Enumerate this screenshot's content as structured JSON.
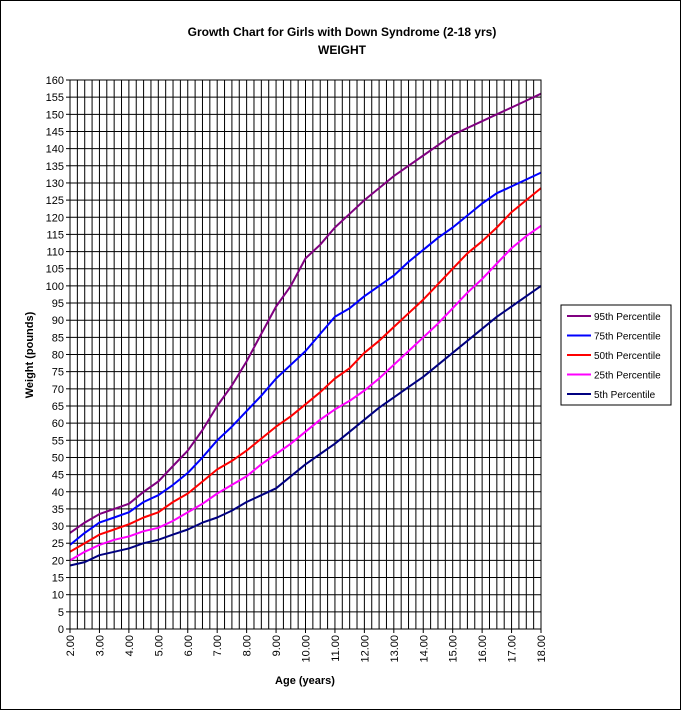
{
  "chart_data": {
    "type": "line",
    "title": "Growth Chart for Girls with Down Syndrome (2-18 yrs)",
    "subtitle": "WEIGHT",
    "xlabel": "Age (years)",
    "ylabel": "Weight (pounds)",
    "xlim": [
      2,
      18
    ],
    "ylim": [
      0,
      160
    ],
    "grid": true,
    "legend_position": "right",
    "x_ticks": [
      "2.00",
      "3.00",
      "4.00",
      "5.00",
      "6.00",
      "7.00",
      "8.00",
      "9.00",
      "10.00",
      "11.00",
      "12.00",
      "13.00",
      "14.00",
      "15.00",
      "16.00",
      "17.00",
      "18.00"
    ],
    "y_ticks": [
      "0",
      "5",
      "10",
      "15",
      "20",
      "25",
      "30",
      "35",
      "40",
      "45",
      "50",
      "55",
      "60",
      "65",
      "70",
      "75",
      "80",
      "85",
      "90",
      "95",
      "100",
      "105",
      "110",
      "115",
      "120",
      "125",
      "130",
      "135",
      "140",
      "145",
      "150",
      "155",
      "160"
    ],
    "x": [
      2.0,
      2.5,
      3.0,
      3.5,
      4.0,
      4.5,
      5.0,
      5.5,
      6.0,
      6.5,
      7.0,
      7.5,
      8.0,
      8.5,
      9.0,
      9.5,
      10.0,
      10.5,
      11.0,
      11.5,
      12.0,
      12.5,
      13.0,
      13.5,
      14.0,
      14.5,
      15.0,
      15.5,
      16.0,
      16.5,
      17.0,
      17.5,
      18.0
    ],
    "series": [
      {
        "name": "95th Percentile",
        "color": "#800080",
        "values": [
          28,
          31,
          33.5,
          35,
          36.5,
          40,
          43,
          47.5,
          52,
          58,
          65,
          71,
          78,
          86,
          94,
          100,
          108,
          112,
          117,
          121,
          125,
          128.5,
          132,
          135,
          138,
          141,
          144,
          146,
          148,
          150,
          152,
          154,
          156
        ]
      },
      {
        "name": "75th Percentile",
        "color": "#0000FF",
        "values": [
          24.5,
          28,
          31,
          32.5,
          34,
          37,
          39,
          42,
          45.5,
          50,
          55,
          59,
          63.5,
          68,
          73,
          77,
          81,
          86,
          91,
          93.5,
          97,
          100,
          103,
          107,
          110.5,
          114,
          117,
          120.5,
          124,
          127,
          129,
          131,
          133
        ]
      },
      {
        "name": "50th Percentile",
        "color": "#FF0000",
        "values": [
          22.5,
          25,
          27.5,
          29,
          30.5,
          32.5,
          34,
          37,
          39.5,
          43,
          46.5,
          49,
          52,
          55.5,
          59,
          62,
          65.5,
          69,
          73,
          76,
          80.5,
          84,
          88,
          92,
          96,
          100.5,
          105,
          109.5,
          113,
          117,
          121.5,
          125,
          128.5
        ]
      },
      {
        "name": "25th Percentile",
        "color": "#FF00FF",
        "values": [
          20,
          22.5,
          24.5,
          26,
          27,
          28.5,
          29.5,
          31.5,
          34,
          36.5,
          39.5,
          42,
          44.5,
          48,
          51,
          54,
          57.5,
          61,
          64,
          66.5,
          69.5,
          73,
          77,
          81,
          85,
          89,
          93.5,
          98,
          102,
          106.5,
          111,
          114.5,
          117.5
        ]
      },
      {
        "name": "5th Percentile",
        "color": "#000080",
        "values": [
          18.5,
          19.5,
          21.5,
          22.5,
          23.5,
          25,
          26,
          27.5,
          29,
          31,
          32.5,
          34.5,
          37,
          39,
          41,
          44.5,
          48,
          51,
          54,
          57.5,
          61,
          64.5,
          67.5,
          70.5,
          73.5,
          77,
          80.5,
          84,
          87.5,
          91,
          94,
          97,
          100
        ]
      }
    ]
  }
}
